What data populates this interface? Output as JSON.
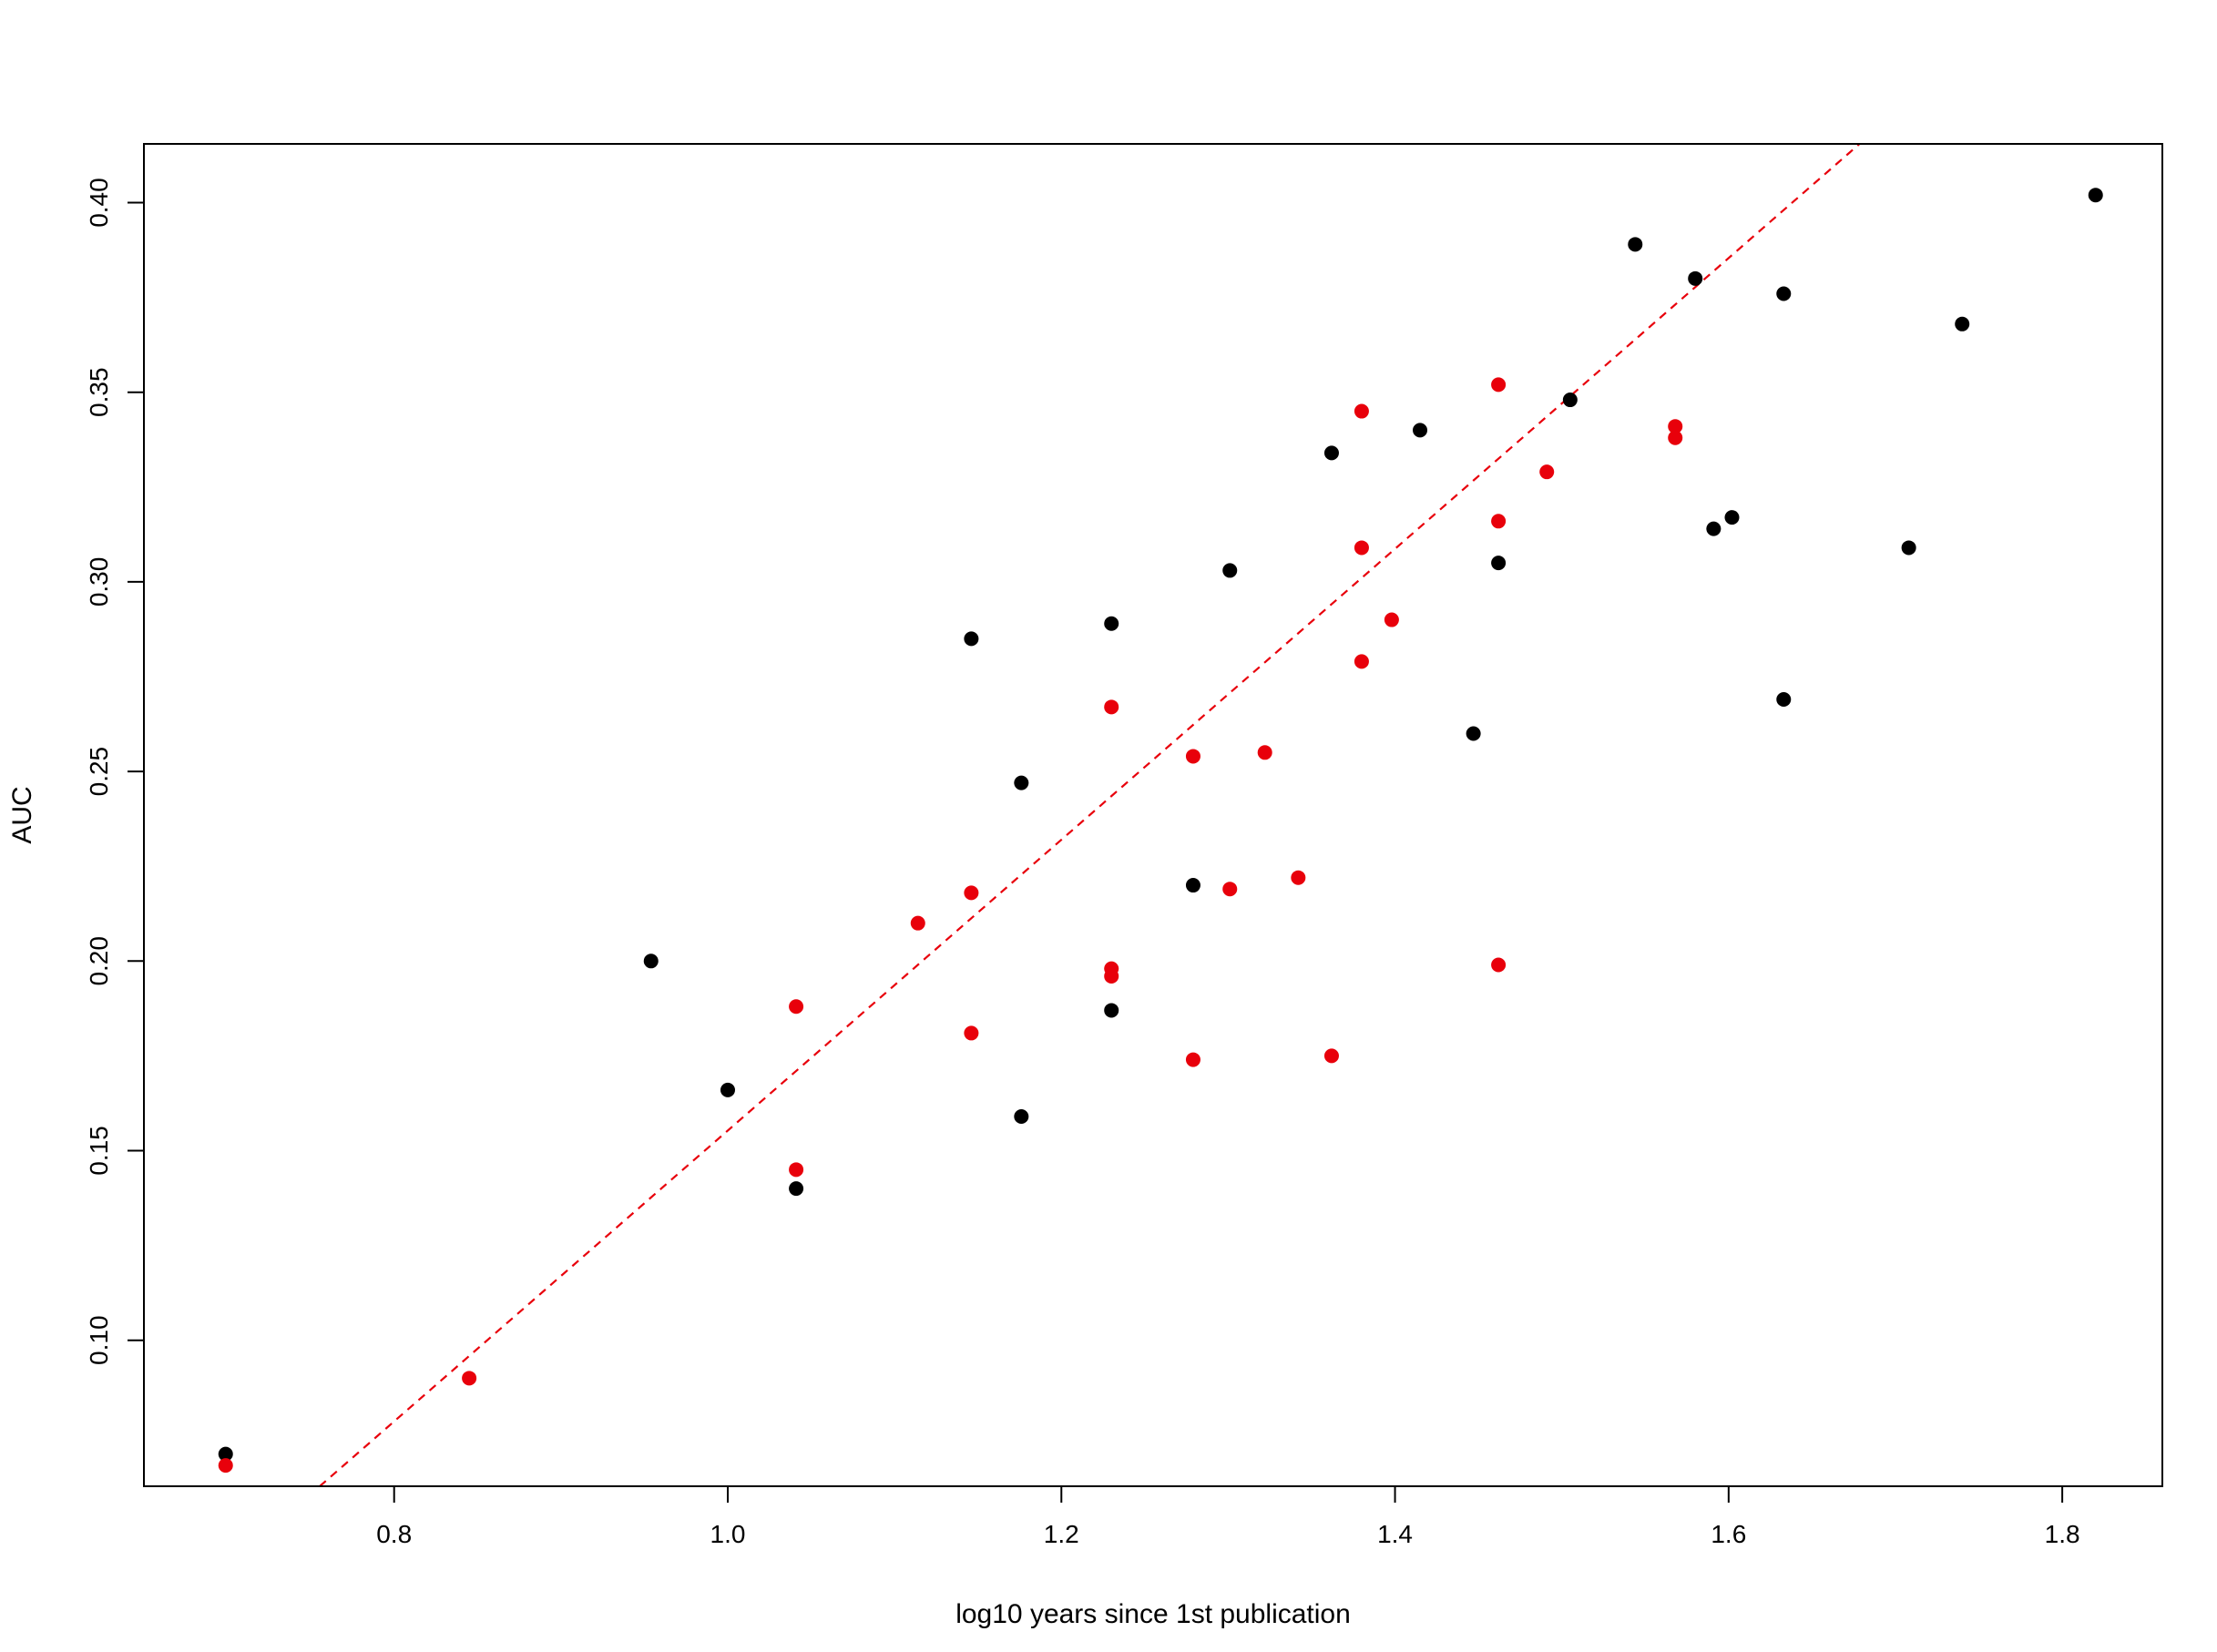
{
  "chart_data": {
    "type": "scatter",
    "xlabel": "log10 years since 1st publication",
    "ylabel": "AUC",
    "xlim": [
      0.65,
      1.86
    ],
    "ylim": [
      0.0615,
      0.4155
    ],
    "x_ticks": [
      0.8,
      1.0,
      1.2,
      1.4,
      1.6,
      1.8
    ],
    "y_ticks": [
      0.1,
      0.15,
      0.2,
      0.25,
      0.3,
      0.35,
      0.4
    ],
    "x_tick_labels": [
      "0.8",
      "1.0",
      "1.2",
      "1.4",
      "1.6",
      "1.8"
    ],
    "y_tick_labels": [
      "0.10",
      "0.15",
      "0.20",
      "0.25",
      "0.30",
      "0.35",
      "0.40"
    ],
    "grid": false,
    "legend": "none",
    "series": [
      {
        "color": "#000000",
        "points": [
          [
            0.699,
            0.07
          ],
          [
            0.954,
            0.2
          ],
          [
            1.0,
            0.166
          ],
          [
            1.041,
            0.14
          ],
          [
            1.146,
            0.285
          ],
          [
            1.176,
            0.247
          ],
          [
            1.176,
            0.159
          ],
          [
            1.23,
            0.289
          ],
          [
            1.23,
            0.187
          ],
          [
            1.279,
            0.22
          ],
          [
            1.301,
            0.303
          ],
          [
            1.362,
            0.334
          ],
          [
            1.415,
            0.34
          ],
          [
            1.447,
            0.26
          ],
          [
            1.462,
            0.305
          ],
          [
            1.505,
            0.348
          ],
          [
            1.544,
            0.389
          ],
          [
            1.58,
            0.38
          ],
          [
            1.591,
            0.314
          ],
          [
            1.602,
            0.317
          ],
          [
            1.633,
            0.376
          ],
          [
            1.633,
            0.269
          ],
          [
            1.708,
            0.309
          ],
          [
            1.74,
            0.368
          ],
          [
            1.82,
            0.402
          ]
        ]
      },
      {
        "color": "#e8000b",
        "points": [
          [
            0.699,
            0.067
          ],
          [
            0.845,
            0.09
          ],
          [
            1.041,
            0.188
          ],
          [
            1.041,
            0.145
          ],
          [
            1.114,
            0.21
          ],
          [
            1.146,
            0.218
          ],
          [
            1.146,
            0.181
          ],
          [
            1.23,
            0.267
          ],
          [
            1.23,
            0.198
          ],
          [
            1.23,
            0.196
          ],
          [
            1.279,
            0.254
          ],
          [
            1.279,
            0.174
          ],
          [
            1.301,
            0.219
          ],
          [
            1.322,
            0.255
          ],
          [
            1.342,
            0.222
          ],
          [
            1.362,
            0.175
          ],
          [
            1.38,
            0.345
          ],
          [
            1.38,
            0.309
          ],
          [
            1.38,
            0.279
          ],
          [
            1.398,
            0.29
          ],
          [
            1.462,
            0.352
          ],
          [
            1.462,
            0.316
          ],
          [
            1.462,
            0.199
          ],
          [
            1.491,
            0.329
          ],
          [
            1.568,
            0.341
          ],
          [
            1.568,
            0.338
          ]
        ]
      }
    ],
    "fit_line": {
      "color": "#e8000b",
      "style": "dashed",
      "intercept": -0.2282,
      "slope": 0.3835
    }
  }
}
